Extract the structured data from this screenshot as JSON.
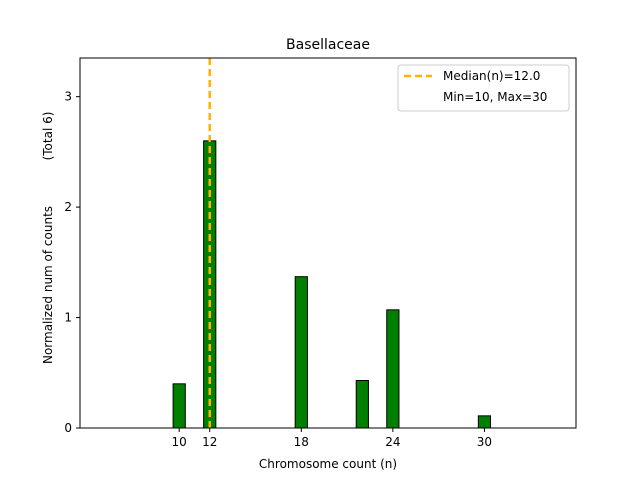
{
  "chart_data": {
    "type": "bar",
    "title": "Basellaceae",
    "xlabel": "Chromosome count (n)",
    "ylabel": "Normalized num of counts",
    "ylabel_note": "(Total 6)",
    "xlim": [
      3.5,
      36
    ],
    "ylim": [
      0,
      3.35
    ],
    "xticks": [
      10,
      12,
      18,
      24,
      30
    ],
    "yticks": [
      0,
      1,
      2,
      3
    ],
    "bar_width": 0.8,
    "bars": [
      {
        "x": 10,
        "value": 0.4
      },
      {
        "x": 12,
        "value": 2.6
      },
      {
        "x": 18,
        "value": 1.37
      },
      {
        "x": 22,
        "value": 0.43
      },
      {
        "x": 24,
        "value": 1.07
      },
      {
        "x": 30,
        "value": 0.11
      }
    ],
    "bar_color": "#008000",
    "bar_edge_color": "#000000",
    "median": {
      "value": 12.0,
      "color": "#FFB300"
    },
    "legend": {
      "position": "top-right",
      "entries": [
        "Median(n)=12.0",
        "Min=10, Max=30"
      ]
    },
    "grid": false
  }
}
